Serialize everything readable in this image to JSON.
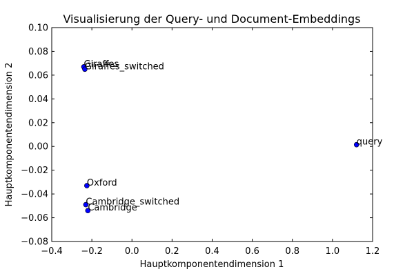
{
  "chart_data": {
    "type": "scatter",
    "title": "Visualisierung der Query- und Document-Embeddings",
    "xlabel": "Hauptkomponentendimension 1",
    "ylabel": "Hauptkomponentendimension 2",
    "xlim": [
      -0.4,
      1.2
    ],
    "ylim": [
      -0.08,
      0.1
    ],
    "xticks": [
      -0.4,
      -0.2,
      0.0,
      0.2,
      0.4,
      0.6,
      0.8,
      1.0,
      1.2
    ],
    "xtick_labels": [
      "−0.4",
      "−0.2",
      "0.0",
      "0.2",
      "0.4",
      "0.6",
      "0.8",
      "1.0",
      "1.2"
    ],
    "yticks": [
      -0.08,
      -0.06,
      -0.04,
      -0.02,
      0.0,
      0.02,
      0.04,
      0.06,
      0.08,
      0.1
    ],
    "ytick_labels": [
      "−0.08",
      "−0.06",
      "−0.04",
      "−0.02",
      "0.00",
      "0.02",
      "0.04",
      "0.06",
      "0.08",
      "0.10"
    ],
    "grid": false,
    "marker_color": "#0000ff",
    "points": [
      {
        "label": "Giraffes",
        "x": -0.24,
        "y": 0.067
      },
      {
        "label": "Giraffes_switched",
        "x": -0.235,
        "y": 0.065
      },
      {
        "label": "query",
        "x": 1.12,
        "y": 0.0015
      },
      {
        "label": "Oxford",
        "x": -0.225,
        "y": -0.033
      },
      {
        "label": "Cambridge_switched",
        "x": -0.23,
        "y": -0.049
      },
      {
        "label": "Cambridge",
        "x": -0.22,
        "y": -0.054
      }
    ]
  }
}
